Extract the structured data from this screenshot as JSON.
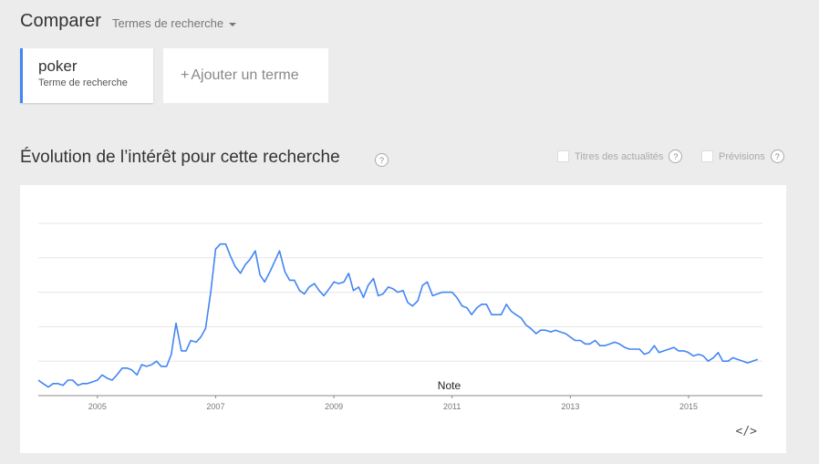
{
  "header": {
    "compare_title": "Comparer",
    "terms_dropdown_label": "Termes de recherche"
  },
  "terms": [
    {
      "name": "poker",
      "type": "Terme de recherche",
      "color": "#4285f4"
    }
  ],
  "add_term": {
    "plus": "+",
    "label": "Ajouter un terme"
  },
  "section": {
    "title": "Évolution de l’intérêt pour cette recherche",
    "help": "?"
  },
  "options": {
    "news_label": "Titres des actualités",
    "forecast_label": "Prévisions",
    "help": "?"
  },
  "embed_label": "</>",
  "chart_data": {
    "type": "line",
    "x_ticks": [
      "2005",
      "2007",
      "2009",
      "2011",
      "2013",
      "2015"
    ],
    "x_range": [
      2004.0,
      2016.25
    ],
    "ylim": [
      0,
      100
    ],
    "grid": true,
    "annotations": [
      {
        "text": "Note",
        "x": 2010.95
      }
    ],
    "series": [
      {
        "color": "#4285f4",
        "values": [
          [
            2004.0,
            9
          ],
          [
            2004.08,
            7
          ],
          [
            2004.17,
            5
          ],
          [
            2004.25,
            7
          ],
          [
            2004.33,
            7
          ],
          [
            2004.42,
            6
          ],
          [
            2004.5,
            9
          ],
          [
            2004.58,
            9
          ],
          [
            2004.67,
            6
          ],
          [
            2004.75,
            7
          ],
          [
            2004.83,
            7
          ],
          [
            2004.92,
            8
          ],
          [
            2005.0,
            9
          ],
          [
            2005.08,
            12
          ],
          [
            2005.17,
            10
          ],
          [
            2005.25,
            9
          ],
          [
            2005.33,
            12
          ],
          [
            2005.42,
            16
          ],
          [
            2005.5,
            16
          ],
          [
            2005.58,
            15
          ],
          [
            2005.67,
            12
          ],
          [
            2005.75,
            18
          ],
          [
            2005.83,
            17
          ],
          [
            2005.92,
            18
          ],
          [
            2006.0,
            20
          ],
          [
            2006.08,
            17
          ],
          [
            2006.17,
            17
          ],
          [
            2006.25,
            24
          ],
          [
            2006.33,
            42
          ],
          [
            2006.42,
            26
          ],
          [
            2006.5,
            26
          ],
          [
            2006.58,
            32
          ],
          [
            2006.67,
            31
          ],
          [
            2006.75,
            34
          ],
          [
            2006.83,
            39
          ],
          [
            2006.92,
            61
          ],
          [
            2007.0,
            85
          ],
          [
            2007.08,
            88
          ],
          [
            2007.17,
            88
          ],
          [
            2007.25,
            81
          ],
          [
            2007.33,
            75
          ],
          [
            2007.42,
            71
          ],
          [
            2007.5,
            76
          ],
          [
            2007.58,
            79
          ],
          [
            2007.67,
            84
          ],
          [
            2007.75,
            70
          ],
          [
            2007.83,
            66
          ],
          [
            2007.92,
            72
          ],
          [
            2008.0,
            78
          ],
          [
            2008.08,
            84
          ],
          [
            2008.17,
            72
          ],
          [
            2008.25,
            67
          ],
          [
            2008.33,
            67
          ],
          [
            2008.42,
            61
          ],
          [
            2008.5,
            59
          ],
          [
            2008.58,
            63
          ],
          [
            2008.67,
            65
          ],
          [
            2008.75,
            61
          ],
          [
            2008.83,
            58
          ],
          [
            2008.92,
            62
          ],
          [
            2009.0,
            66
          ],
          [
            2009.08,
            65
          ],
          [
            2009.17,
            66
          ],
          [
            2009.25,
            71
          ],
          [
            2009.33,
            61
          ],
          [
            2009.42,
            63
          ],
          [
            2009.5,
            57
          ],
          [
            2009.58,
            64
          ],
          [
            2009.67,
            68
          ],
          [
            2009.75,
            58
          ],
          [
            2009.83,
            59
          ],
          [
            2009.92,
            63
          ],
          [
            2010.0,
            62
          ],
          [
            2010.08,
            60
          ],
          [
            2010.17,
            61
          ],
          [
            2010.25,
            54
          ],
          [
            2010.33,
            52
          ],
          [
            2010.42,
            55
          ],
          [
            2010.5,
            64
          ],
          [
            2010.58,
            66
          ],
          [
            2010.67,
            58
          ],
          [
            2010.75,
            59
          ],
          [
            2010.83,
            60
          ],
          [
            2010.92,
            60
          ],
          [
            2011.0,
            60
          ],
          [
            2011.08,
            57
          ],
          [
            2011.17,
            52
          ],
          [
            2011.25,
            51
          ],
          [
            2011.33,
            47
          ],
          [
            2011.42,
            51
          ],
          [
            2011.5,
            53
          ],
          [
            2011.58,
            53
          ],
          [
            2011.67,
            47
          ],
          [
            2011.75,
            47
          ],
          [
            2011.83,
            47
          ],
          [
            2011.92,
            53
          ],
          [
            2012.0,
            49
          ],
          [
            2012.08,
            47
          ],
          [
            2012.17,
            45
          ],
          [
            2012.25,
            41
          ],
          [
            2012.33,
            39
          ],
          [
            2012.42,
            36
          ],
          [
            2012.5,
            38
          ],
          [
            2012.58,
            38
          ],
          [
            2012.67,
            37
          ],
          [
            2012.75,
            38
          ],
          [
            2012.83,
            37
          ],
          [
            2012.92,
            36
          ],
          [
            2013.0,
            34
          ],
          [
            2013.08,
            32
          ],
          [
            2013.17,
            32
          ],
          [
            2013.25,
            30
          ],
          [
            2013.33,
            30
          ],
          [
            2013.42,
            32
          ],
          [
            2013.5,
            29
          ],
          [
            2013.58,
            29
          ],
          [
            2013.67,
            30
          ],
          [
            2013.75,
            31
          ],
          [
            2013.83,
            30
          ],
          [
            2013.92,
            28
          ],
          [
            2014.0,
            27
          ],
          [
            2014.08,
            27
          ],
          [
            2014.17,
            27
          ],
          [
            2014.25,
            24
          ],
          [
            2014.33,
            25
          ],
          [
            2014.42,
            29
          ],
          [
            2014.5,
            25
          ],
          [
            2014.58,
            26
          ],
          [
            2014.67,
            27
          ],
          [
            2014.75,
            28
          ],
          [
            2014.83,
            26
          ],
          [
            2014.92,
            26
          ],
          [
            2015.0,
            25
          ],
          [
            2015.08,
            23
          ],
          [
            2015.17,
            24
          ],
          [
            2015.25,
            23
          ],
          [
            2015.33,
            20
          ],
          [
            2015.42,
            22
          ],
          [
            2015.5,
            25
          ],
          [
            2015.58,
            20
          ],
          [
            2015.67,
            20
          ],
          [
            2015.75,
            22
          ],
          [
            2015.83,
            21
          ],
          [
            2015.92,
            20
          ],
          [
            2016.0,
            19
          ],
          [
            2016.08,
            20
          ],
          [
            2016.17,
            21
          ]
        ]
      }
    ]
  }
}
